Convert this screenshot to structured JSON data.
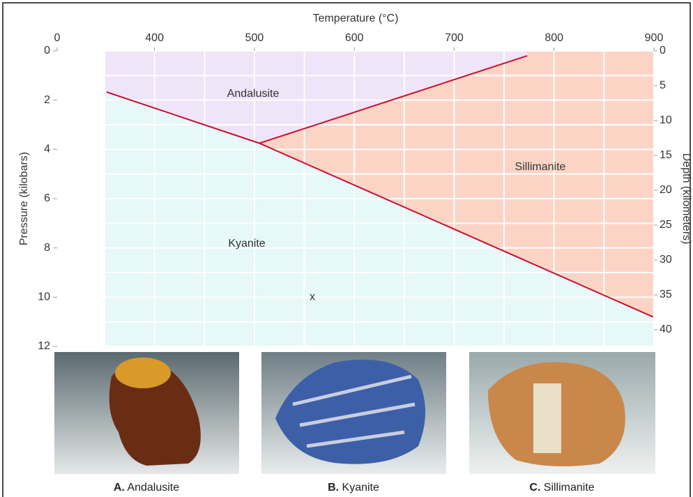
{
  "chart_data": {
    "type": "phase-diagram",
    "x_label": "Temperature (°C)",
    "y_label": "Pressure (kilobars)",
    "y2_label": "Depth (kilometers)",
    "xlim": [
      0,
      900
    ],
    "x_break": 350,
    "xticks": [
      0,
      400,
      500,
      600,
      700,
      800,
      900
    ],
    "ylim": [
      0,
      12
    ],
    "y_inverted": true,
    "yticks": [
      0,
      2,
      4,
      6,
      8,
      10,
      12
    ],
    "y2lim": [
      0,
      42.4
    ],
    "y2ticks": [
      0,
      5,
      10,
      15,
      20,
      25,
      30,
      35,
      40
    ],
    "grid": true,
    "grid_x": [
      350,
      400,
      450,
      500,
      550,
      600,
      650,
      700,
      750,
      800,
      850,
      900
    ],
    "grid_y": [
      0,
      1,
      2,
      3,
      4,
      5,
      6,
      7,
      8,
      9,
      10,
      11,
      12
    ],
    "phases": [
      {
        "name": "Andalusite",
        "color": "#f0e4f8"
      },
      {
        "name": "Kyanite",
        "color": "#e6f8f8"
      },
      {
        "name": "Sillimanite",
        "color": "#fcd4c6"
      }
    ],
    "boundary_color": "#c8102e",
    "boundaries": [
      {
        "x": [
          352,
          505
        ],
        "y": [
          1.67,
          3.75
        ]
      },
      {
        "x": [
          505,
          773
        ],
        "y": [
          3.75,
          0.2
        ]
      },
      {
        "x": [
          505,
          899
        ],
        "y": [
          3.75,
          10.8
        ]
      }
    ],
    "point": {
      "label": "x",
      "x": 558,
      "y": 10
    }
  },
  "photos": [
    {
      "letter": "A.",
      "name": "Andalusite"
    },
    {
      "letter": "B.",
      "name": "Kyanite"
    },
    {
      "letter": "C.",
      "name": "Sillimanite"
    }
  ]
}
